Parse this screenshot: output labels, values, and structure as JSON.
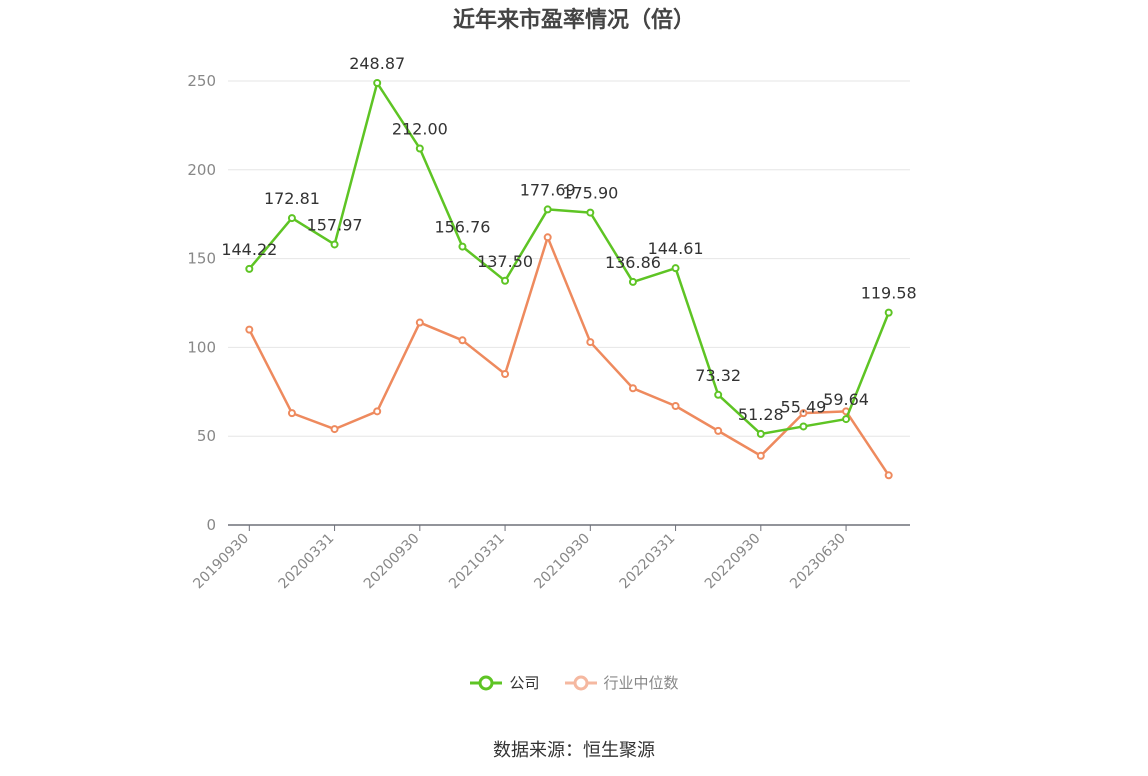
{
  "title": "近年来市盈率情况（倍）",
  "source": "数据来源：恒生聚源",
  "legend": [
    {
      "name": "公司",
      "color": "#5ec424"
    },
    {
      "name": "行业中位数",
      "color": "#ee8a5e"
    }
  ],
  "chart_data": {
    "type": "line",
    "title": "近年来市盈率情况（倍）",
    "x_tick_labels": [
      "20190930",
      "20200331",
      "20200930",
      "20210331",
      "20210930",
      "20220331",
      "20220930",
      "20230630"
    ],
    "ylim": [
      0,
      250
    ],
    "y_ticks": [
      0,
      50,
      100,
      150,
      200,
      250
    ],
    "grid": true,
    "legend_position": "bottom",
    "series": [
      {
        "name": "公司",
        "color": "#5ec424",
        "values": [
          144.22,
          172.81,
          157.97,
          248.87,
          212.0,
          156.76,
          137.5,
          177.69,
          175.9,
          136.86,
          144.61,
          73.32,
          51.28,
          55.49,
          59.64,
          119.58
        ],
        "labels": [
          "144.22",
          "172.81",
          "157.97",
          "248.87",
          "212.00",
          "156.76",
          "137.50",
          "177.69",
          "175.90",
          "136.86",
          "144.61",
          "73.32",
          "51.28",
          "55.49",
          "59.64",
          "119.58"
        ]
      },
      {
        "name": "行业中位数",
        "color": "#ee8a5e",
        "values": [
          110,
          63,
          54,
          64,
          114,
          104,
          85,
          162,
          103,
          77,
          67,
          53,
          39,
          63,
          64,
          28
        ]
      }
    ]
  }
}
